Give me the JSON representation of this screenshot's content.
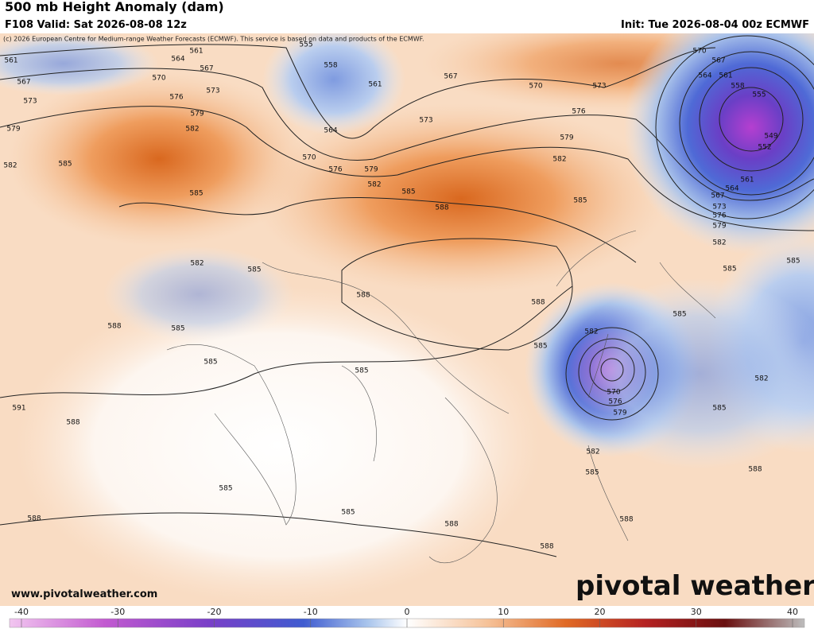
{
  "header": {
    "title": "500 mb Height Anomaly (dam)",
    "valid": "F108 Valid: Sat 2026-08-08 12z",
    "init": "Init: Tue 2026-08-04 00z ECMWF",
    "copyright": "(c) 2026 European Centre for Medium-range Weather Forecasts (ECMWF). This service is based on data and products of the ECMWF."
  },
  "contour_labels": [
    561,
    564,
    561,
    555,
    558,
    567,
    570,
    561,
    567,
    570,
    573,
    573,
    576,
    573,
    567,
    579,
    579,
    582,
    564,
    573,
    576,
    579,
    570,
    576,
    579,
    582,
    585,
    588,
    582,
    585,
    585,
    582,
    585,
    570,
    567,
    564,
    561,
    558,
    555,
    549,
    552,
    561,
    564,
    567,
    573,
    576,
    579,
    582,
    585,
    585,
    582,
    585,
    588,
    588,
    585,
    588,
    585,
    585,
    585,
    585,
    582,
    570,
    576,
    579,
    585,
    582,
    591,
    588,
    582,
    585,
    588,
    588,
    585,
    585,
    588,
    588,
    588
  ],
  "footer": {
    "website": "www.pivotalweather.com",
    "logo": "pivotal weather"
  },
  "colorbar": {
    "ticks": [
      -40,
      -30,
      -20,
      -10,
      0,
      10,
      20,
      30,
      40
    ]
  }
}
